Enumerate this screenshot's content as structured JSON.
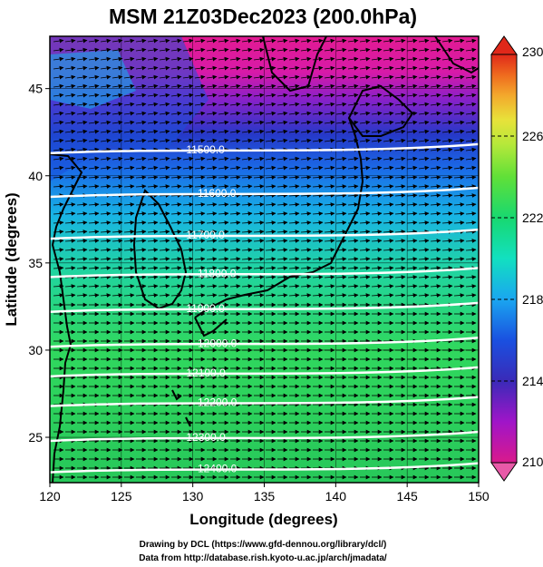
{
  "title": "MSM 21Z03Dec2023 (200.0hPa)",
  "map": {
    "xlabel": "Longitude (degrees)",
    "ylabel": "Latitude  (degrees)",
    "lon_range": [
      120,
      150
    ],
    "lat_range": [
      22.4,
      48
    ],
    "lon_ticks": [
      "120",
      "125",
      "130",
      "135",
      "140",
      "145",
      "150"
    ],
    "lat_ticks": [
      "25",
      "30",
      "35",
      "40",
      "45"
    ],
    "field": "temperature shading with geopotential height contours and wind vectors"
  },
  "contours": [
    {
      "label": "11500.0",
      "lat": 41.5
    },
    {
      "label": "11600.0",
      "lat": 39.0
    },
    {
      "label": "11700.0",
      "lat": 36.6
    },
    {
      "label": "11800.0",
      "lat": 34.4
    },
    {
      "label": "11900.0",
      "lat": 32.4
    },
    {
      "label": "12000.0",
      "lat": 30.4
    },
    {
      "label": "12100.0",
      "lat": 28.7
    },
    {
      "label": "12200.0",
      "lat": 27.0
    },
    {
      "label": "12300.0",
      "lat": 25.0
    },
    {
      "label": "12400.0",
      "lat": 23.2
    }
  ],
  "colorbar": {
    "min": 210,
    "max": 230,
    "ticks": [
      "230",
      "226",
      "222",
      "218",
      "214",
      "210"
    ],
    "colors": [
      "#d91a8c",
      "#b015c8",
      "#4a2ab8",
      "#1a4fe0",
      "#1aa7f0",
      "#10e0c8",
      "#18d870",
      "#48e038",
      "#a6e83a",
      "#e6e23a",
      "#f3b02c",
      "#ef6a1e",
      "#e0281a"
    ]
  },
  "footer": {
    "line1": "Drawing by DCL (https://www.gfd-dennou.org/library/dcl/)",
    "line2": "Data from http://database.rish.kyoto-u.ac.jp/arch/jmadata/"
  }
}
